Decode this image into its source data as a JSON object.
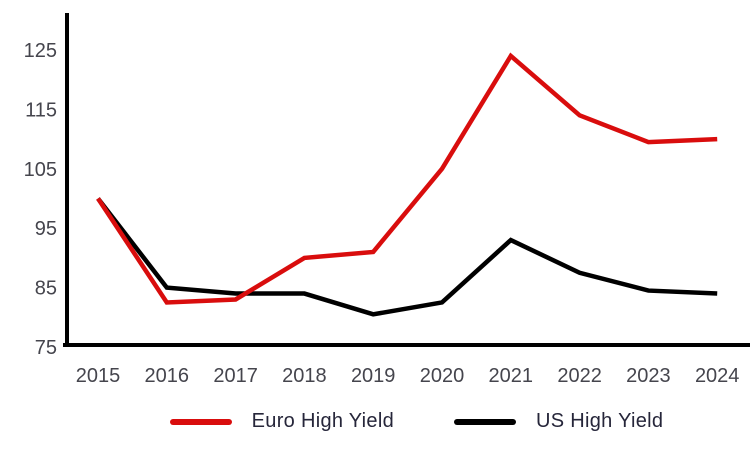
{
  "chart_data": {
    "type": "line",
    "title": "",
    "x": [
      2015,
      2016,
      2017,
      2018,
      2019,
      2020,
      2021,
      2022,
      2023,
      2024
    ],
    "series": [
      {
        "name": "Euro High Yield",
        "color": "#d90d0d",
        "values": [
          100,
          82.5,
          83,
          90,
          91,
          105,
          124,
          114,
          109.5,
          110
        ]
      },
      {
        "name": "US High Yield",
        "color": "#000000",
        "values": [
          100,
          85,
          84,
          84,
          80.5,
          82.5,
          93,
          87.5,
          84.5,
          84
        ]
      }
    ],
    "ylim": [
      75,
      125
    ],
    "yticks": [
      75,
      85,
      95,
      105,
      115,
      125
    ],
    "grid": false,
    "legend_position": "bottom",
    "axis_color": "#000000",
    "tick_label_color": "#45454d"
  },
  "legend": {
    "items": [
      {
        "label": "Euro High Yield",
        "color": "#d90d0d"
      },
      {
        "label": "US High Yield",
        "color": "#000000"
      }
    ]
  }
}
